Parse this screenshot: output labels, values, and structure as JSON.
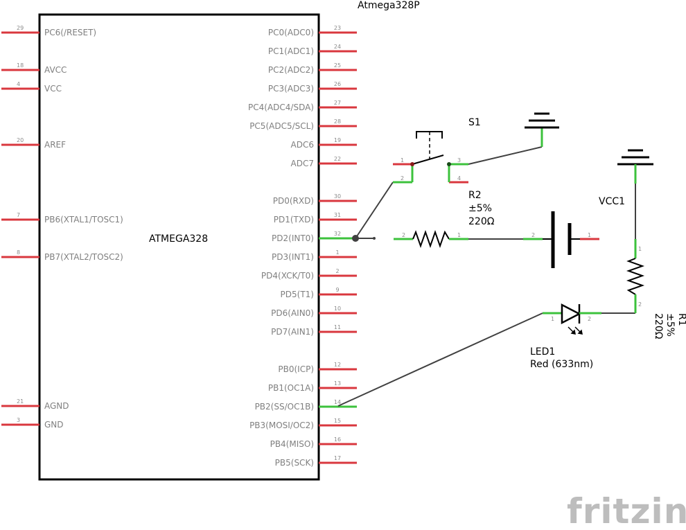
{
  "colors": {
    "pin": "#d9373e",
    "connected": "#3cc23c",
    "wire": "#404040",
    "body": "#000000",
    "logo": "#bdbdbd"
  },
  "chip": {
    "title": "Atmega328P",
    "name": "ATMEGA328"
  },
  "left_pins": [
    {
      "num": "29",
      "label": "PC6(/RESET)"
    },
    {
      "num": "18",
      "label": "AVCC"
    },
    {
      "num": "4",
      "label": "VCC"
    },
    {
      "num": "20",
      "label": "AREF"
    },
    {
      "num": "7",
      "label": "PB6(XTAL1/TOSC1)"
    },
    {
      "num": "8",
      "label": "PB7(XTAL2/TOSC2)"
    },
    {
      "num": "21",
      "label": "AGND"
    },
    {
      "num": "3",
      "label": "GND"
    }
  ],
  "right_pins": [
    {
      "num": "23",
      "label": "PC0(ADC0)"
    },
    {
      "num": "24",
      "label": "PC1(ADC1)"
    },
    {
      "num": "25",
      "label": "PC2(ADC2)"
    },
    {
      "num": "26",
      "label": "PC3(ADC3)"
    },
    {
      "num": "27",
      "label": "PC4(ADC4/SDA)"
    },
    {
      "num": "28",
      "label": "PC5(ADC5/SCL)"
    },
    {
      "num": "19",
      "label": "ADC6"
    },
    {
      "num": "22",
      "label": "ADC7"
    },
    {
      "num": "30",
      "label": "PD0(RXD)"
    },
    {
      "num": "31",
      "label": "PD1(TXD)"
    },
    {
      "num": "32",
      "label": "PD2(INT0)"
    },
    {
      "num": "1",
      "label": "PD3(INT1)"
    },
    {
      "num": "2",
      "label": "PD4(XCK/T0)"
    },
    {
      "num": "9",
      "label": "PD5(T1)"
    },
    {
      "num": "10",
      "label": "PD6(AIN0)"
    },
    {
      "num": "11",
      "label": "PD7(AIN1)"
    },
    {
      "num": "12",
      "label": "PB0(ICP)"
    },
    {
      "num": "13",
      "label": "PB1(OC1A)"
    },
    {
      "num": "14",
      "label": "PB2(SS/OC1B)"
    },
    {
      "num": "15",
      "label": "PB3(MOSI/OC2)"
    },
    {
      "num": "16",
      "label": "PB4(MISO)"
    },
    {
      "num": "17",
      "label": "PB5(SCK)"
    }
  ],
  "switch": {
    "ref": "S1",
    "pins": [
      "1",
      "2",
      "3",
      "4"
    ]
  },
  "r2": {
    "ref": "R2",
    "tolerance": "±5%",
    "value": "220Ω",
    "pins": [
      "2",
      "1"
    ]
  },
  "battery": {
    "pins": [
      "2",
      "1"
    ]
  },
  "vcc": {
    "ref": "VCC1"
  },
  "r1": {
    "ref": "R1",
    "tolerance": "±5%",
    "value": "220Ω",
    "pins": [
      "1",
      "2"
    ]
  },
  "led": {
    "ref": "LED1",
    "desc": "Red (633nm)",
    "pins": [
      "1",
      "2"
    ]
  },
  "logo": "fritzing"
}
